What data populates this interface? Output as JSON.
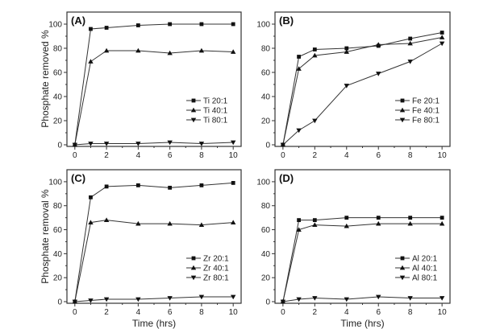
{
  "chart_data": [
    {
      "type": "line",
      "panel_label": "(A)",
      "xlabel": "",
      "ylabel": "Phosphate removed %",
      "xlim": [
        -0.5,
        10.5
      ],
      "ylim": [
        0,
        110
      ],
      "xticks": [
        0,
        2,
        4,
        6,
        8,
        10
      ],
      "yticks": [
        0,
        20,
        40,
        60,
        80,
        100
      ],
      "legend_position": "center-right",
      "x": [
        0,
        1,
        2,
        4,
        6,
        8,
        10
      ],
      "series": [
        {
          "name": "Ti 20:1",
          "marker": "square",
          "values": [
            0,
            96,
            97,
            99,
            100,
            100,
            100
          ]
        },
        {
          "name": "Ti 40:1",
          "marker": "triangle-up",
          "values": [
            0,
            69,
            78,
            78,
            76,
            78,
            77
          ]
        },
        {
          "name": "Ti 80:1",
          "marker": "triangle-down",
          "values": [
            0,
            1,
            1,
            1,
            2,
            1,
            2
          ]
        }
      ]
    },
    {
      "type": "line",
      "panel_label": "(B)",
      "xlabel": "",
      "ylabel": "",
      "xlim": [
        -0.5,
        10.5
      ],
      "ylim": [
        0,
        110
      ],
      "xticks": [
        0,
        2,
        4,
        6,
        8,
        10
      ],
      "yticks": [
        0,
        20,
        40,
        60,
        80,
        100
      ],
      "legend_position": "center-right",
      "x": [
        0,
        1,
        2,
        4,
        6,
        8,
        10
      ],
      "series": [
        {
          "name": "Fe 20:1",
          "marker": "square",
          "values": [
            0,
            73,
            79,
            80,
            82,
            88,
            93
          ]
        },
        {
          "name": "Fe 40:1",
          "marker": "triangle-up",
          "values": [
            0,
            63,
            74,
            77,
            83,
            84,
            89
          ]
        },
        {
          "name": "Fe 80:1",
          "marker": "triangle-down",
          "values": [
            0,
            12,
            20,
            49,
            59,
            69,
            84
          ]
        }
      ]
    },
    {
      "type": "line",
      "panel_label": "(C)",
      "xlabel": "Time (hrs)",
      "ylabel": "Phosphate removal %",
      "xlim": [
        -0.5,
        10.5
      ],
      "ylim": [
        0,
        110
      ],
      "xticks": [
        0,
        2,
        4,
        6,
        8,
        10
      ],
      "yticks": [
        0,
        20,
        40,
        60,
        80,
        100
      ],
      "legend_position": "center-right",
      "x": [
        0,
        1,
        2,
        4,
        6,
        8,
        10
      ],
      "series": [
        {
          "name": "Zr 20:1",
          "marker": "square",
          "values": [
            0,
            87,
            96,
            97,
            95,
            97,
            99
          ]
        },
        {
          "name": "Zr 40:1",
          "marker": "triangle-up",
          "values": [
            0,
            66,
            68,
            65,
            65,
            64,
            66
          ]
        },
        {
          "name": "Zr 80:1",
          "marker": "triangle-down",
          "values": [
            0,
            1,
            2,
            2,
            3,
            4,
            4
          ]
        }
      ]
    },
    {
      "type": "line",
      "panel_label": "(D)",
      "xlabel": "Time (hrs)",
      "ylabel": "",
      "xlim": [
        -0.5,
        10.5
      ],
      "ylim": [
        0,
        110
      ],
      "xticks": [
        0,
        2,
        4,
        6,
        8,
        10
      ],
      "yticks": [
        0,
        20,
        40,
        60,
        80,
        100
      ],
      "legend_position": "center-right",
      "x": [
        0,
        1,
        2,
        4,
        6,
        8,
        10
      ],
      "series": [
        {
          "name": "Al 20:1",
          "marker": "square",
          "values": [
            0,
            68,
            68,
            70,
            70,
            70,
            70
          ]
        },
        {
          "name": "Al 40:1",
          "marker": "triangle-up",
          "values": [
            0,
            60,
            64,
            63,
            65,
            65,
            65
          ]
        },
        {
          "name": "Al 80:1",
          "marker": "triangle-down",
          "values": [
            0,
            2,
            3,
            2,
            4,
            3,
            3
          ]
        }
      ]
    }
  ]
}
